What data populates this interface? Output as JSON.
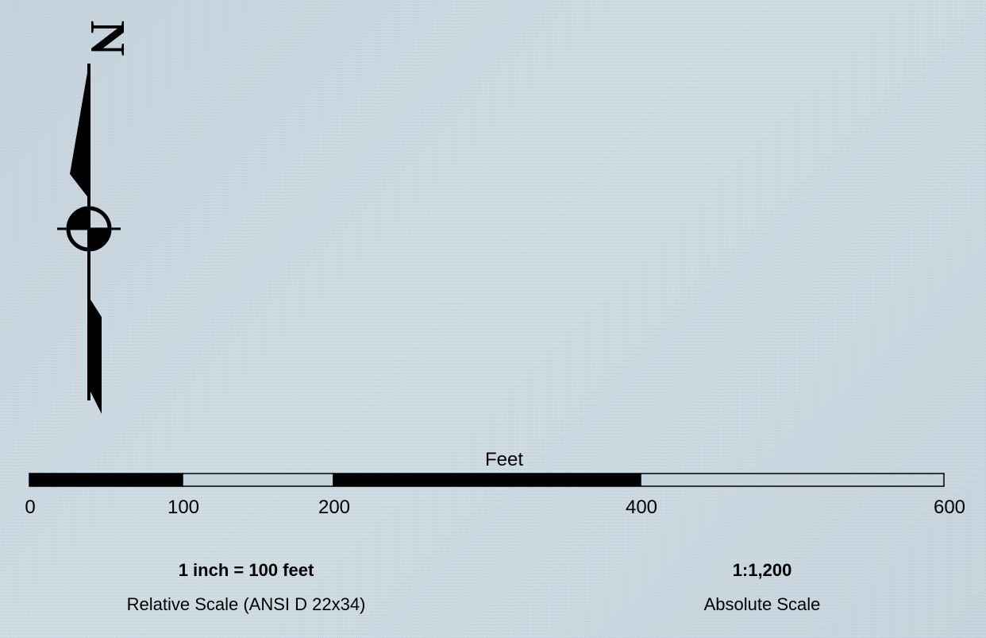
{
  "north_arrow": {
    "letter": "N",
    "icon": "north-arrow-icon"
  },
  "scale_bar": {
    "units": "Feet",
    "ticks": [
      "0",
      "100",
      "200",
      "400",
      "600"
    ],
    "colors": {
      "dark": "#000000",
      "light": "#c5d3dc"
    }
  },
  "relative_scale": {
    "value": "1 inch = 100 feet",
    "caption": "Relative Scale (ANSI D 22x34)"
  },
  "absolute_scale": {
    "value": "1:1,200",
    "caption": "Absolute Scale"
  }
}
